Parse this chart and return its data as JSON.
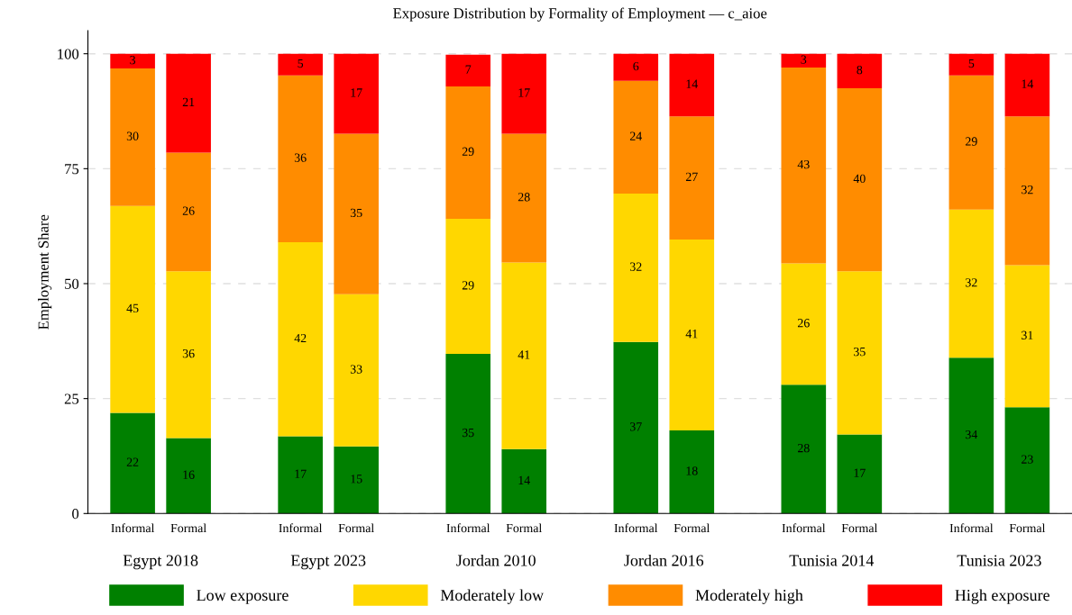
{
  "chart_data": {
    "type": "bar",
    "stacked": true,
    "title": "Exposure Distribution by Formality of Employment — c_aioe",
    "ylabel": "Employment Share",
    "categories": [
      "Informal",
      "Formal",
      "Informal",
      "Formal",
      "Informal",
      "Formal",
      "Informal",
      "Formal",
      "Informal",
      "Formal",
      "Informal",
      "Formal"
    ],
    "annotations": [
      "Egypt 2018",
      "Egypt 2023",
      "Jordan 2010",
      "Jordan 2016",
      "Tunisia 2014",
      "Tunisia 2023"
    ],
    "series": [
      {
        "name": "Low exposure",
        "color": "#008000",
        "values": [
          21.9,
          16.4,
          16.8,
          14.6,
          34.7,
          14.0,
          37.3,
          18.1,
          28.0,
          17.2,
          33.9,
          23.1
        ],
        "value_labels": [
          "22",
          "16",
          "17",
          "15",
          "35",
          "14",
          "37",
          "18",
          "28",
          "17",
          "34",
          "23"
        ]
      },
      {
        "name": "Moderately low",
        "color": "#ffd700",
        "values": [
          45.0,
          36.3,
          42.2,
          33.1,
          29.4,
          40.6,
          32.3,
          41.5,
          26.4,
          35.5,
          32.2,
          30.9
        ],
        "value_labels": [
          "45",
          "36",
          "42",
          "33",
          "29",
          "41",
          "32",
          "41",
          "26",
          "35",
          "32",
          "31"
        ]
      },
      {
        "name": "Moderately high",
        "color": "#ff8c00",
        "values": [
          29.9,
          25.8,
          36.3,
          34.9,
          28.8,
          28.0,
          24.5,
          26.8,
          42.6,
          39.8,
          29.2,
          32.4
        ],
        "value_labels": [
          "30",
          "26",
          "36",
          "35",
          "29",
          "28",
          "24",
          "27",
          "43",
          "40",
          "29",
          "32"
        ]
      },
      {
        "name": "High exposure",
        "color": "#ff0000",
        "values": [
          3.2,
          21.5,
          4.7,
          17.4,
          6.9,
          17.4,
          5.9,
          13.6,
          3.0,
          7.5,
          4.7,
          13.6
        ],
        "value_labels": [
          "3",
          "21",
          "5",
          "17",
          "7",
          "17",
          "6",
          "14",
          "3",
          "8",
          "5",
          "14"
        ]
      }
    ],
    "ylim": [
      0,
      105
    ],
    "yticks": [
      0,
      25,
      50,
      75,
      100
    ],
    "grid": "y",
    "legend": "bottom"
  }
}
